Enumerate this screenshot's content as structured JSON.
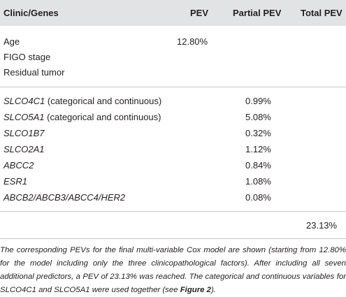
{
  "headers": {
    "col1": "Clinic/Genes",
    "col2": "PEV",
    "col3": "Partial PEV",
    "col4": "Total PEV"
  },
  "clinical_rows": [
    {
      "label": "Age",
      "pev": "12.80%"
    },
    {
      "label": "FIGO stage",
      "pev": ""
    },
    {
      "label": "Residual tumor",
      "pev": ""
    }
  ],
  "gene_rows": [
    {
      "gene": "SLCO4C1",
      "note": " (categorical and continuous)",
      "partial": "0.99%"
    },
    {
      "gene": "SLCO5A1",
      "note": " (categorical and continuous)",
      "partial": "5.08%"
    },
    {
      "gene": "SLCO1B7",
      "note": "",
      "partial": "0.32%"
    },
    {
      "gene": "SLCO2A1",
      "note": "",
      "partial": "1.12%"
    },
    {
      "gene": "ABCC2",
      "note": "",
      "partial": "0.84%"
    },
    {
      "gene": "ESR1",
      "note": "",
      "partial": "1.08%"
    },
    {
      "gene": "ABCB2/ABCB3/ABCC4/HER2",
      "note": "",
      "partial": "0.08%"
    }
  ],
  "total_pev": "23.13%",
  "caption": {
    "part1": "The corresponding PEVs for the final multi-variable Cox model are shown (starting from 12.80% for the model including only the three clinicopathological factors). After including all seven additional predictors, a PEV of 23.13% was reached. The categorical and continuous variables for SLCO4C1 and SLCO5A1 were used together (see ",
    "figref": "Figure 2",
    "part2": ")."
  }
}
